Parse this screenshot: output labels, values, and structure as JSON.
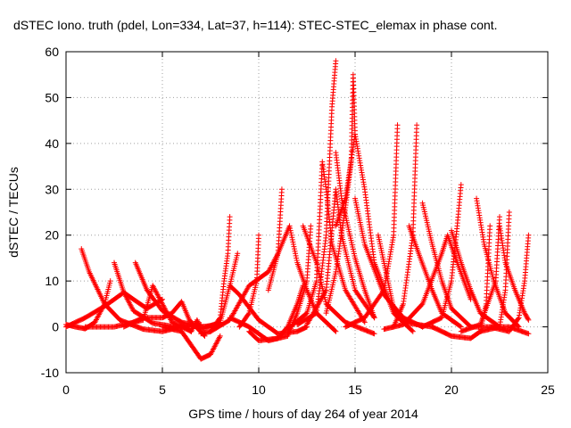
{
  "chart_data": {
    "type": "scatter",
    "title": "dSTEC Iono. truth (pdel, Lon=334, Lat=37, h=114): STEC-STEC_elemax in phase cont.",
    "xlabel": "GPS time / hours of day 264 of year 2014",
    "ylabel": "dSTEC  / TECUs",
    "xlim": [
      0,
      25
    ],
    "ylim": [
      -10,
      60
    ],
    "x_ticks": [
      "0",
      "5",
      "10",
      "15",
      "20",
      "25"
    ],
    "y_ticks": [
      "-10",
      "0",
      "10",
      "20",
      "30",
      "40",
      "50",
      "60"
    ],
    "grid": true,
    "marker": "+",
    "series_color": "#ff0000",
    "series": [
      {
        "values": [
          [
            0.0,
            0.5
          ],
          [
            0.5,
            0.0
          ],
          [
            1.0,
            -0.4
          ],
          [
            1.5,
            1.0
          ],
          [
            2.0,
            5.0
          ],
          [
            2.3,
            10.0
          ]
        ]
      },
      {
        "values": [
          [
            0.0,
            0.0
          ],
          [
            1.0,
            2.0
          ],
          [
            2.0,
            4.5
          ],
          [
            3.0,
            7.5
          ],
          [
            3.5,
            6.0
          ],
          [
            4.2,
            4.0
          ],
          [
            5.0,
            6.0
          ]
        ]
      },
      {
        "values": [
          [
            0.8,
            17.0
          ],
          [
            1.2,
            12.0
          ],
          [
            2.0,
            5.0
          ],
          [
            2.8,
            1.5
          ],
          [
            4.0,
            -0.5
          ],
          [
            5.0,
            -1.0
          ],
          [
            6.0,
            0.0
          ]
        ]
      },
      {
        "values": [
          [
            2.5,
            14.0
          ],
          [
            3.0,
            7.5
          ],
          [
            3.5,
            3.5
          ],
          [
            4.5,
            0.8
          ],
          [
            6.0,
            -0.2
          ],
          [
            7.0,
            0.5
          ]
        ]
      },
      {
        "values": [
          [
            3.6,
            14.0
          ],
          [
            4.2,
            8.0
          ],
          [
            5.0,
            3.5
          ],
          [
            6.0,
            1.0
          ],
          [
            7.0,
            0.0
          ],
          [
            8.0,
            0.5
          ]
        ]
      },
      {
        "values": [
          [
            1.0,
            0.0
          ],
          [
            2.5,
            0.0
          ],
          [
            4.0,
            1.5
          ],
          [
            4.5,
            9.0
          ],
          [
            5.0,
            5.0
          ],
          [
            5.5,
            1.0
          ],
          [
            6.5,
            -1.0
          ]
        ]
      },
      {
        "values": [
          [
            3.0,
            0.0
          ],
          [
            4.0,
            2.0
          ],
          [
            5.0,
            2.0
          ],
          [
            5.5,
            3.0
          ],
          [
            6.0,
            5.5
          ],
          [
            6.4,
            1.5
          ],
          [
            7.2,
            -2.0
          ]
        ]
      },
      {
        "values": [
          [
            5.0,
            0.0
          ],
          [
            6.0,
            -1.0
          ],
          [
            6.5,
            -4.0
          ],
          [
            7.0,
            -7.0
          ],
          [
            7.5,
            -6.0
          ],
          [
            8.0,
            -2.0
          ]
        ]
      },
      {
        "values": [
          [
            6.0,
            0.5
          ],
          [
            6.5,
            -1.0
          ],
          [
            6.8,
            1.5
          ],
          [
            7.0,
            -0.5
          ],
          [
            8.0,
            1.0
          ],
          [
            8.5,
            9.0
          ],
          [
            8.9,
            16.0
          ]
        ]
      },
      {
        "values": [
          [
            7.0,
            -1.5
          ],
          [
            7.5,
            -1.0
          ],
          [
            8.0,
            2.0
          ],
          [
            8.2,
            10.0
          ],
          [
            8.4,
            16.0
          ],
          [
            8.5,
            24.0
          ]
        ]
      },
      {
        "values": [
          [
            7.5,
            -1.0
          ],
          [
            8.5,
            1.5
          ],
          [
            9.5,
            9.0
          ],
          [
            10.5,
            12.0
          ],
          [
            11.0,
            16.0
          ],
          [
            11.2,
            30.0
          ]
        ]
      },
      {
        "values": [
          [
            8.5,
            9.0
          ],
          [
            9.0,
            7.0
          ],
          [
            10.0,
            1.5
          ],
          [
            11.0,
            -1.5
          ],
          [
            12.0,
            -1.0
          ],
          [
            12.5,
            0.0
          ]
        ]
      },
      {
        "values": [
          [
            8.5,
            2.0
          ],
          [
            9.5,
            0.0
          ],
          [
            10.5,
            -3.0
          ],
          [
            11.5,
            -2.0
          ],
          [
            12.0,
            3.0
          ],
          [
            12.5,
            10.0
          ],
          [
            12.7,
            22.0
          ]
        ]
      },
      {
        "values": [
          [
            9.0,
            0.0
          ],
          [
            9.5,
            3.0
          ],
          [
            9.9,
            10.0
          ],
          [
            10.0,
            20.0
          ]
        ]
      },
      {
        "values": [
          [
            9.5,
            -1.0
          ],
          [
            10.0,
            -3.0
          ],
          [
            11.0,
            -2.5
          ],
          [
            11.5,
            0.0
          ],
          [
            12.0,
            5.0
          ],
          [
            12.3,
            9.0
          ]
        ]
      },
      {
        "values": [
          [
            10.5,
            8.0
          ],
          [
            11.0,
            16.0
          ],
          [
            11.6,
            22.0
          ],
          [
            12.0,
            14.0
          ],
          [
            12.5,
            8.0
          ],
          [
            13.0,
            3.0
          ],
          [
            14.0,
            -1.0
          ]
        ]
      },
      {
        "values": [
          [
            12.3,
            22.0
          ],
          [
            13.0,
            14.0
          ],
          [
            13.5,
            5.0
          ],
          [
            14.5,
            1.0
          ],
          [
            16.0,
            -1.5
          ]
        ]
      },
      {
        "values": [
          [
            11.5,
            -0.5
          ],
          [
            12.5,
            3.0
          ],
          [
            13.0,
            10.0
          ],
          [
            13.3,
            36.0
          ],
          [
            13.5,
            30.0
          ],
          [
            13.8,
            18.0
          ],
          [
            14.5,
            8.0
          ],
          [
            15.5,
            1.0
          ]
        ]
      },
      {
        "values": [
          [
            12.0,
            0.5
          ],
          [
            13.0,
            3.0
          ],
          [
            13.5,
            20.0
          ],
          [
            13.8,
            48.0
          ],
          [
            14.0,
            58.0
          ]
        ]
      },
      {
        "values": [
          [
            12.5,
            0.5
          ],
          [
            13.5,
            8.0
          ],
          [
            14.0,
            30.0
          ],
          [
            14.3,
            20.0
          ],
          [
            15.0,
            8.0
          ],
          [
            16.0,
            2.0
          ]
        ]
      },
      {
        "values": [
          [
            14.0,
            38.0
          ],
          [
            14.3,
            28.0
          ],
          [
            15.0,
            15.0
          ],
          [
            15.5,
            8.0
          ],
          [
            16.0,
            2.0
          ]
        ]
      },
      {
        "values": [
          [
            13.5,
            3.0
          ],
          [
            14.0,
            12.0
          ],
          [
            14.5,
            26.0
          ],
          [
            14.8,
            36.0
          ],
          [
            14.9,
            55.0
          ],
          [
            15.0,
            42.0
          ]
        ]
      },
      {
        "values": [
          [
            14.0,
            22.0
          ],
          [
            14.5,
            28.0
          ],
          [
            15.0,
            42.0
          ],
          [
            15.5,
            30.0
          ],
          [
            16.0,
            14.0
          ],
          [
            17.0,
            3.0
          ],
          [
            18.0,
            -1.0
          ]
        ]
      },
      {
        "values": [
          [
            15.0,
            28.0
          ],
          [
            15.5,
            18.0
          ],
          [
            16.5,
            7.0
          ],
          [
            17.5,
            2.0
          ],
          [
            18.5,
            0.0
          ]
        ]
      },
      {
        "values": [
          [
            16.2,
            20.0
          ],
          [
            16.7,
            10.0
          ],
          [
            17.0,
            4.0
          ],
          [
            17.5,
            1.0
          ],
          [
            19.0,
            0.0
          ]
        ]
      },
      {
        "values": [
          [
            14.5,
            0.0
          ],
          [
            15.5,
            2.0
          ],
          [
            16.5,
            8.0
          ],
          [
            17.0,
            20.0
          ],
          [
            17.2,
            44.0
          ]
        ]
      },
      {
        "values": [
          [
            17.0,
            0.0
          ],
          [
            17.5,
            5.0
          ],
          [
            18.0,
            20.0
          ],
          [
            18.2,
            44.0
          ]
        ]
      },
      {
        "values": [
          [
            17.8,
            22.0
          ],
          [
            18.3,
            16.0
          ],
          [
            19.0,
            8.0
          ],
          [
            19.5,
            3.0
          ],
          [
            20.5,
            0.0
          ]
        ]
      },
      {
        "values": [
          [
            18.5,
            27.0
          ],
          [
            19.0,
            18.0
          ],
          [
            19.5,
            10.0
          ],
          [
            20.0,
            4.0
          ],
          [
            21.0,
            0.0
          ]
        ]
      },
      {
        "values": [
          [
            16.5,
            -0.5
          ],
          [
            17.5,
            0.5
          ],
          [
            18.5,
            5.0
          ],
          [
            19.5,
            16.0
          ],
          [
            19.8,
            20.0
          ],
          [
            20.3,
            14.0
          ],
          [
            21.0,
            6.0
          ]
        ]
      },
      {
        "values": [
          [
            18.5,
            0.0
          ],
          [
            19.5,
            2.0
          ],
          [
            20.0,
            10.0
          ],
          [
            20.3,
            22.0
          ],
          [
            20.5,
            31.0
          ]
        ]
      },
      {
        "values": [
          [
            19.0,
            0.0
          ],
          [
            20.0,
            -2.0
          ],
          [
            21.0,
            -2.5
          ],
          [
            21.5,
            -1.0
          ],
          [
            21.8,
            5.0
          ],
          [
            22.0,
            22.0
          ]
        ]
      },
      {
        "values": [
          [
            20.0,
            21.0
          ],
          [
            20.5,
            14.0
          ],
          [
            21.0,
            8.0
          ],
          [
            21.5,
            3.0
          ],
          [
            22.5,
            0.0
          ]
        ]
      },
      {
        "values": [
          [
            21.3,
            28.0
          ],
          [
            21.7,
            18.0
          ],
          [
            22.2,
            10.0
          ],
          [
            22.8,
            3.0
          ],
          [
            23.5,
            0.0
          ]
        ]
      },
      {
        "values": [
          [
            22.5,
            22.0
          ],
          [
            22.8,
            14.0
          ],
          [
            23.3,
            8.0
          ],
          [
            23.8,
            3.0
          ],
          [
            24.0,
            1.5
          ]
        ]
      },
      {
        "values": [
          [
            20.5,
            -1.0
          ],
          [
            21.5,
            0.5
          ],
          [
            22.3,
            10.0
          ],
          [
            22.5,
            24.0
          ]
        ]
      },
      {
        "values": [
          [
            21.5,
            -1.0
          ],
          [
            22.5,
            0.0
          ],
          [
            22.8,
            8.0
          ],
          [
            23.0,
            25.0
          ]
        ]
      },
      {
        "values": [
          [
            21.0,
            0.0
          ],
          [
            22.0,
            0.0
          ],
          [
            23.0,
            -1.0
          ],
          [
            23.5,
            2.0
          ],
          [
            23.8,
            10.0
          ],
          [
            24.0,
            20.0
          ]
        ]
      },
      {
        "values": [
          [
            22.0,
            0.0
          ],
          [
            23.0,
            0.0
          ],
          [
            24.0,
            -1.5
          ]
        ]
      }
    ]
  }
}
